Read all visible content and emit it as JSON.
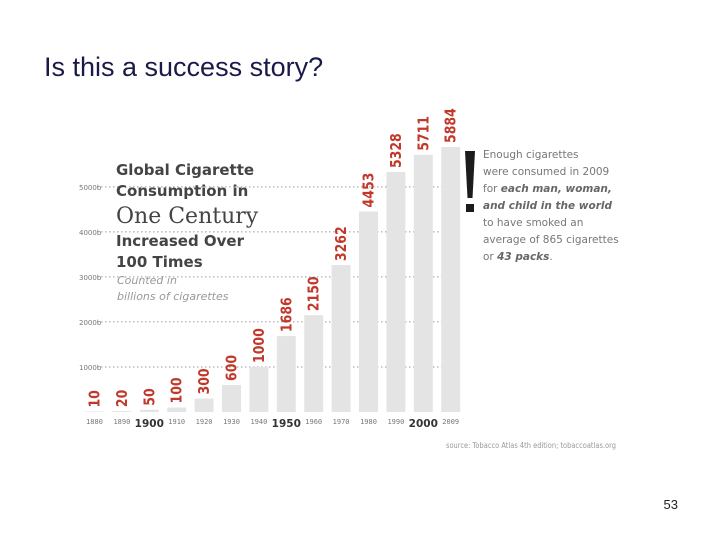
{
  "slide": {
    "title": "Is this a success story?",
    "page_number": "53"
  },
  "chart_data": {
    "type": "bar",
    "title_lines": [
      "Global Cigarette",
      "Consumption in",
      "One Century",
      "Increased Over",
      "100 Times"
    ],
    "subtitle_lines": [
      "Counted in",
      "billions of cigarettes"
    ],
    "categories": [
      "1880",
      "1890",
      "1900",
      "1910",
      "1920",
      "1930",
      "1940",
      "1950",
      "1960",
      "1970",
      "1980",
      "1990",
      "2000",
      "2009"
    ],
    "major_categories": [
      "1900",
      "1950",
      "2000"
    ],
    "values": [
      10,
      20,
      50,
      100,
      300,
      600,
      1000,
      1686,
      2150,
      3262,
      4453,
      5328,
      5711,
      5884
    ],
    "value_labels": [
      "10",
      "20",
      "50",
      "100",
      "300",
      "600",
      "1000",
      "1686",
      "2150",
      "3262",
      "4453",
      "5328",
      "5711",
      "5884"
    ],
    "y_ticks": [
      {
        "value": 1000,
        "label": "1000b"
      },
      {
        "value": 2000,
        "label": "2000b"
      },
      {
        "value": 3000,
        "label": "3000b"
      },
      {
        "value": 4000,
        "label": "4000b"
      },
      {
        "value": 5000,
        "label": "5000b"
      }
    ],
    "ylim": [
      0,
      5884
    ],
    "grid": true,
    "annotation": {
      "mark": "!",
      "lines": [
        {
          "parts": [
            {
              "text": "Enough cigarettes",
              "em": false
            }
          ]
        },
        {
          "parts": [
            {
              "text": "were consumed in 2009",
              "em": false
            }
          ]
        },
        {
          "parts": [
            {
              "text": "for ",
              "em": false
            },
            {
              "text": "each man, woman,",
              "em": true
            }
          ]
        },
        {
          "parts": [
            {
              "text": "and child in the world",
              "em": true
            }
          ]
        },
        {
          "parts": [
            {
              "text": "to have smoked an",
              "em": false
            }
          ]
        },
        {
          "parts": [
            {
              "text": "average of 865 cigarettes",
              "em": false
            }
          ]
        },
        {
          "parts": [
            {
              "text": "or ",
              "em": false
            },
            {
              "text": "43 packs",
              "em": true
            },
            {
              "text": ".",
              "em": false
            }
          ]
        }
      ]
    },
    "source": "source: Tobacco Atlas 4th edition; tobaccoatlas.org",
    "colors": {
      "bar": "#e4e4e4",
      "label": "#c0392b",
      "grid": "#9a9a9a",
      "mark": "#1c1c1c"
    }
  }
}
